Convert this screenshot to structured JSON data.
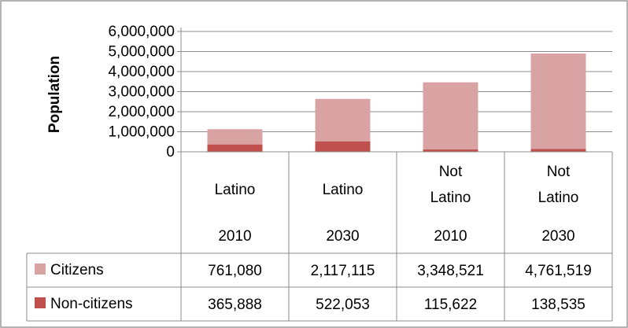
{
  "chart_data": {
    "type": "bar",
    "stacked": true,
    "ylabel": "Population",
    "ylim": [
      0,
      6000000
    ],
    "y_ticks": [
      "6,000,000",
      "5,000,000",
      "4,000,000",
      "3,000,000",
      "2,000,000",
      "1,000,000",
      "0"
    ],
    "y_tick_values": [
      6000000,
      5000000,
      4000000,
      3000000,
      2000000,
      1000000,
      0
    ],
    "grid": true,
    "legend": "table",
    "categories": [
      {
        "group_lines": [
          "Latino"
        ],
        "year": "2010"
      },
      {
        "group_lines": [
          "Latino"
        ],
        "year": "2030"
      },
      {
        "group_lines": [
          "Not",
          "Latino"
        ],
        "year": "2010"
      },
      {
        "group_lines": [
          "Not",
          "Latino"
        ],
        "year": "2030"
      }
    ],
    "series": [
      {
        "name": "Citizens",
        "color": "#d9a3a3",
        "values": [
          761080,
          2117115,
          3348521,
          4761519
        ],
        "labels": [
          "761,080",
          "2,117,115",
          "3,348,521",
          "4,761,519"
        ]
      },
      {
        "name": "Non-citizens",
        "color": "#c0504d",
        "values": [
          365888,
          522053,
          115622,
          138535
        ],
        "labels": [
          "365,888",
          "522,053",
          "115,622",
          "138,535"
        ]
      }
    ]
  }
}
